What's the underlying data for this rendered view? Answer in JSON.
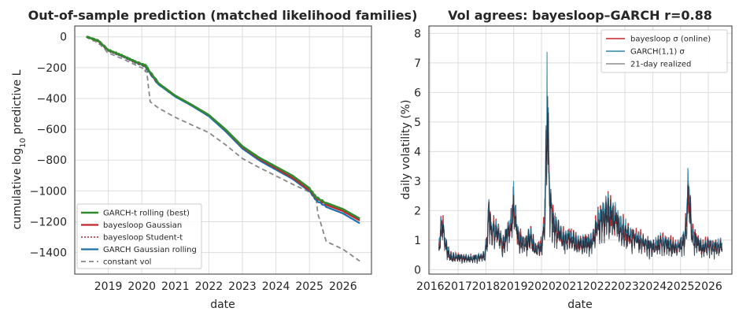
{
  "chart_data": [
    {
      "type": "line",
      "title": "Out-of-sample prediction (matched likelihood families)",
      "xlabel": "date",
      "ylabel": "cumulative log10 predictive L",
      "xlim": [
        2018.0,
        2026.85
      ],
      "ylim": [
        -1540,
        70
      ],
      "xticks": [
        "2019",
        "2020",
        "2021",
        "2022",
        "2023",
        "2024",
        "2025",
        "2026"
      ],
      "yticks": [
        0,
        -200,
        -400,
        -600,
        -800,
        -1000,
        -1200,
        -1400
      ],
      "ytick_labels": [
        "0",
        "−200",
        "−400",
        "−600",
        "−800",
        "−1000",
        "−1200",
        "−1400"
      ],
      "grid": true,
      "legend_position": "lower-left",
      "series": [
        {
          "name": "GARCH-t rolling (best)",
          "color": "#2e8b2e",
          "style": "solid",
          "width": 2.6,
          "x": [
            2018.35,
            2018.7,
            2019.0,
            2019.4,
            2019.8,
            2020.1,
            2020.2,
            2020.5,
            2021.0,
            2021.5,
            2022.0,
            2022.5,
            2023.0,
            2023.5,
            2024.0,
            2024.5,
            2025.0,
            2025.2,
            2025.5,
            2026.0,
            2026.5
          ],
          "y": [
            0,
            -25,
            -85,
            -120,
            -160,
            -185,
            -215,
            -300,
            -380,
            -440,
            -505,
            -600,
            -710,
            -785,
            -845,
            -905,
            -985,
            -1040,
            -1080,
            -1120,
            -1180
          ]
        },
        {
          "name": "bayesloop Gaussian",
          "color": "#c0272d",
          "style": "solid",
          "width": 2.2,
          "x": [
            2018.35,
            2018.7,
            2019.0,
            2019.4,
            2019.8,
            2020.1,
            2020.2,
            2020.5,
            2021.0,
            2021.5,
            2022.0,
            2022.5,
            2023.0,
            2023.5,
            2024.0,
            2024.5,
            2025.0,
            2025.2,
            2025.5,
            2026.0,
            2026.5
          ],
          "y": [
            0,
            -26,
            -88,
            -122,
            -163,
            -188,
            -218,
            -304,
            -384,
            -445,
            -510,
            -606,
            -716,
            -790,
            -851,
            -912,
            -992,
            -1047,
            -1088,
            -1130,
            -1192
          ]
        },
        {
          "name": "bayesloop Student-t",
          "color": "#c0272d",
          "style": "dotted",
          "width": 1.5,
          "x": [
            2018.35,
            2018.7,
            2019.0,
            2019.4,
            2019.8,
            2020.1,
            2020.2,
            2020.5,
            2021.0,
            2021.5,
            2022.0,
            2022.5,
            2023.0,
            2023.5,
            2024.0,
            2024.5,
            2025.0,
            2025.2,
            2025.5,
            2026.0,
            2026.5
          ],
          "y": [
            0,
            -25,
            -86,
            -121,
            -162,
            -187,
            -217,
            -302,
            -382,
            -443,
            -508,
            -604,
            -714,
            -788,
            -848,
            -909,
            -989,
            -1044,
            -1085,
            -1126,
            -1188
          ]
        },
        {
          "name": "GARCH Gaussian rolling",
          "color": "#1f6fa8",
          "style": "solid",
          "width": 2.2,
          "x": [
            2018.35,
            2018.7,
            2019.0,
            2019.4,
            2019.8,
            2020.1,
            2020.2,
            2020.5,
            2021.0,
            2021.5,
            2022.0,
            2022.5,
            2023.0,
            2023.5,
            2024.0,
            2024.5,
            2025.0,
            2025.2,
            2025.5,
            2026.0,
            2026.5
          ],
          "y": [
            0,
            -27,
            -90,
            -125,
            -166,
            -192,
            -225,
            -312,
            -392,
            -452,
            -518,
            -615,
            -725,
            -800,
            -860,
            -920,
            -1000,
            -1062,
            -1102,
            -1145,
            -1210
          ]
        },
        {
          "name": "constant vol",
          "color": "#888888",
          "style": "dashed",
          "width": 1.8,
          "x": [
            2018.35,
            2018.7,
            2019.0,
            2019.5,
            2020.0,
            2020.15,
            2020.2,
            2020.25,
            2020.5,
            2021.0,
            2021.5,
            2022.0,
            2022.5,
            2023.0,
            2023.5,
            2024.0,
            2024.5,
            2025.0,
            2025.2,
            2025.25,
            2025.5,
            2026.0,
            2026.5
          ],
          "y": [
            0,
            -40,
            -105,
            -150,
            -200,
            -230,
            -330,
            -420,
            -460,
            -520,
            -570,
            -620,
            -700,
            -790,
            -850,
            -905,
            -960,
            -1010,
            -1045,
            -1150,
            -1330,
            -1380,
            -1455
          ]
        }
      ]
    },
    {
      "type": "line",
      "title": "Vol agrees: bayesloop–GARCH r=0.88",
      "xlabel": "date",
      "ylabel": "daily volatility (%)",
      "xlim": [
        2015.95,
        2026.85
      ],
      "ylim": [
        -0.15,
        8.25
      ],
      "xticks": [
        "2016",
        "2017",
        "2018",
        "2019",
        "2020",
        "2021",
        "2022",
        "2023",
        "2024",
        "2025",
        "2026"
      ],
      "yticks": [
        0,
        1,
        2,
        3,
        4,
        5,
        6,
        7,
        8
      ],
      "grid": true,
      "legend_position": "top-right",
      "series": [
        {
          "name": "bayesloop σ (online)",
          "color": "#c0272d"
        },
        {
          "name": "GARCH(1,1) σ",
          "color": "#2f86a6"
        },
        {
          "name": "21-day realized",
          "color": "#555555"
        }
      ],
      "x_key": [
        2016.3,
        2016.42,
        2016.55,
        2016.7,
        2016.9,
        2017.1,
        2017.4,
        2017.7,
        2017.95,
        2018.05,
        2018.1,
        2018.2,
        2018.35,
        2018.6,
        2018.9,
        2019.0,
        2019.15,
        2019.4,
        2019.6,
        2019.8,
        2020.0,
        2020.1,
        2020.15,
        2020.2,
        2020.25,
        2020.3,
        2020.4,
        2020.6,
        2020.8,
        2021.0,
        2021.2,
        2021.5,
        2021.8,
        2022.0,
        2022.2,
        2022.4,
        2022.6,
        2022.8,
        2023.0,
        2023.2,
        2023.5,
        2023.8,
        2024.0,
        2024.3,
        2024.6,
        2024.8,
        2025.0,
        2025.15,
        2025.25,
        2025.3,
        2025.35,
        2025.45,
        2025.6,
        2025.8,
        2026.0,
        2026.2,
        2026.5
      ],
      "y_key": [
        0.8,
        1.75,
        0.9,
        0.5,
        0.45,
        0.45,
        0.4,
        0.45,
        0.5,
        1.2,
        2.2,
        1.3,
        1.5,
        0.9,
        1.6,
        2.4,
        1.2,
        0.9,
        1.2,
        0.7,
        0.9,
        1.5,
        3.5,
        5.2,
        4.2,
        2.5,
        1.8,
        1.4,
        1.1,
        1.2,
        1.0,
        0.95,
        1.0,
        1.6,
        1.9,
        2.1,
        2.0,
        1.6,
        1.4,
        1.2,
        1.1,
        0.9,
        0.8,
        1.0,
        0.9,
        0.8,
        0.9,
        1.1,
        2.3,
        3.0,
        2.0,
        1.2,
        1.0,
        0.8,
        0.9,
        0.8,
        0.9
      ]
    }
  ]
}
